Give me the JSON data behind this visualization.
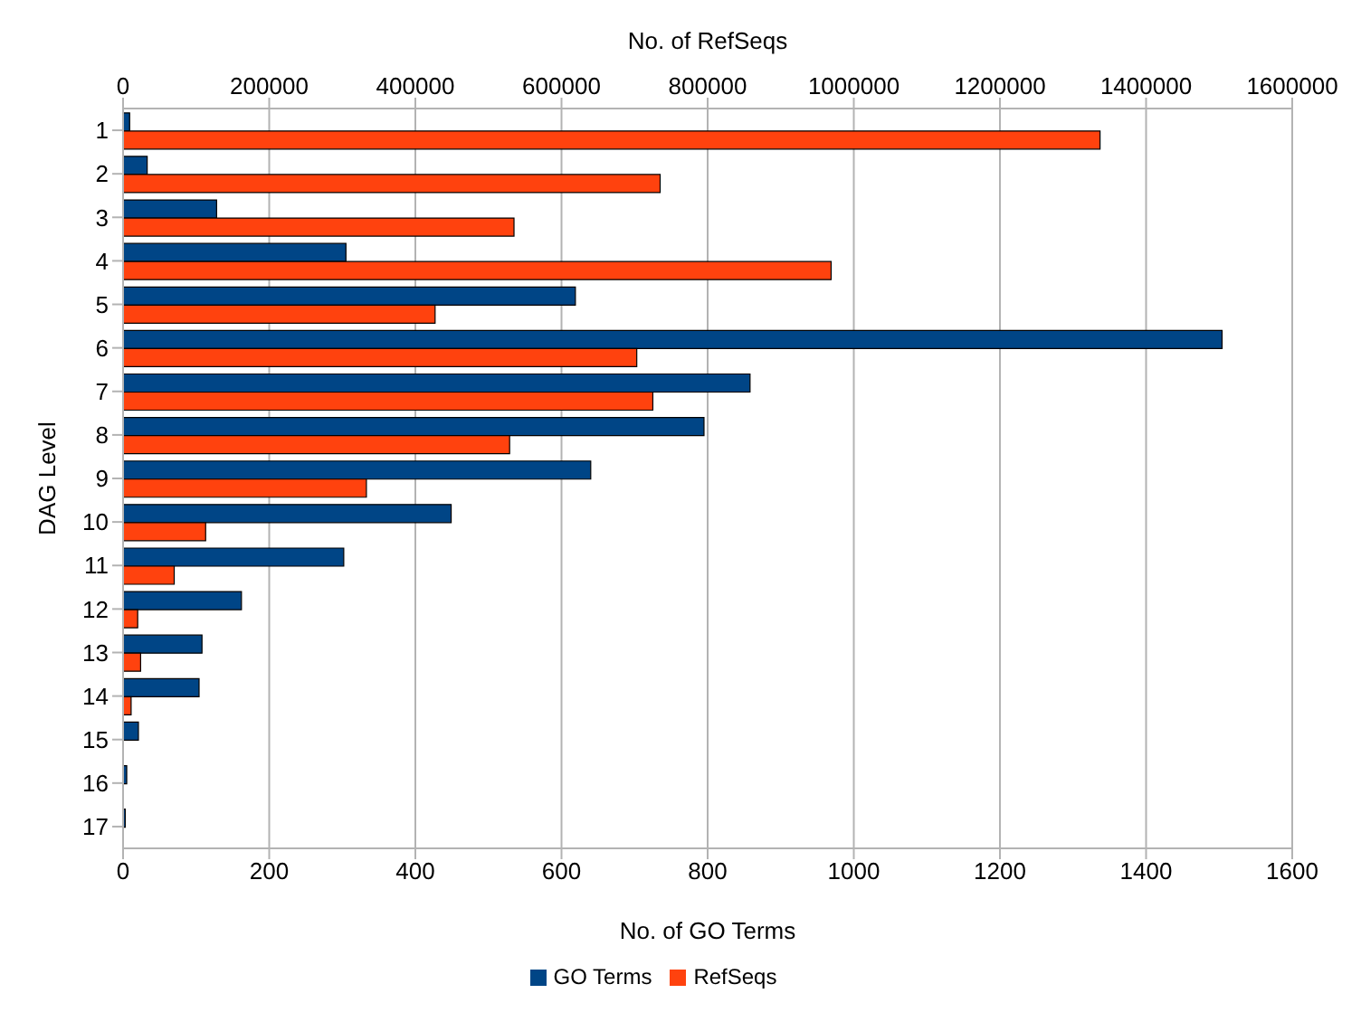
{
  "chart_data": {
    "type": "bar",
    "orientation": "horizontal",
    "xlabel": "No. of GO Terms",
    "x2label": "No. of RefSeqs",
    "ylabel": "DAG Level",
    "categories": [
      "1",
      "2",
      "3",
      "4",
      "5",
      "6",
      "7",
      "8",
      "9",
      "10",
      "11",
      "12",
      "13",
      "14",
      "15",
      "16",
      "17"
    ],
    "series": [
      {
        "name": "GO Terms",
        "color": "#004586",
        "values": [
          9,
          33,
          128,
          305,
          619,
          1504,
          858,
          795,
          640,
          449,
          302,
          162,
          108,
          104,
          21,
          5,
          3
        ]
      },
      {
        "name": "RefSeqs",
        "color": "#ff420e",
        "axis": "x2",
        "values": [
          1337000,
          735000,
          535000,
          969000,
          427000,
          703000,
          725000,
          529000,
          333000,
          113000,
          70000,
          20000,
          24000,
          11000,
          null,
          null,
          null
        ]
      }
    ],
    "xlim": [
      0,
      1600
    ],
    "xticks": [
      0,
      200,
      400,
      600,
      800,
      1000,
      1200,
      1400,
      1600
    ],
    "x2lim": [
      0,
      1600000
    ],
    "x2ticks": [
      0,
      200000,
      400000,
      600000,
      800000,
      1000000,
      1200000,
      1400000,
      1600000
    ],
    "grid": "x",
    "legend": "bottom"
  }
}
